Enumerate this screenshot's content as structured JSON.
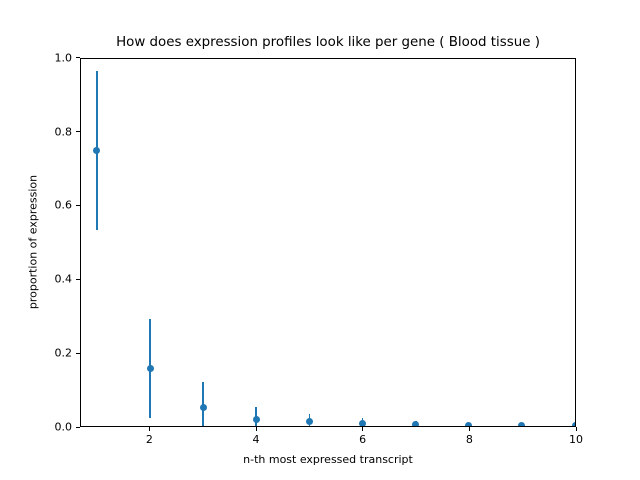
{
  "chart_data": {
    "type": "scatter",
    "title": "How does expression profiles look like per gene ( Blood tissue )",
    "xlabel": "n-th most expressed transcript",
    "ylabel": "proportion of expression",
    "x": [
      1,
      2,
      3,
      4,
      5,
      6,
      7,
      8,
      9,
      10
    ],
    "y": [
      0.75,
      0.157,
      0.052,
      0.018,
      0.012,
      0.007,
      0.005,
      0.003,
      0.002,
      0.002
    ],
    "yerr": [
      0.215,
      0.135,
      0.068,
      0.034,
      0.021,
      0.015,
      0.009,
      0.006,
      0.004,
      0.003
    ],
    "xlim": [
      0.7,
      10.0
    ],
    "ylim": [
      0.0,
      1.0
    ],
    "xticks": [
      {
        "value": 2,
        "label": "2"
      },
      {
        "value": 4,
        "label": "4"
      },
      {
        "value": 6,
        "label": "6"
      },
      {
        "value": 8,
        "label": "8"
      },
      {
        "value": 10,
        "label": "10"
      }
    ],
    "yticks": [
      {
        "value": 0.0,
        "label": "0.0"
      },
      {
        "value": 0.2,
        "label": "0.2"
      },
      {
        "value": 0.4,
        "label": "0.4"
      },
      {
        "value": 0.6,
        "label": "0.6"
      },
      {
        "value": 0.8,
        "label": "0.8"
      },
      {
        "value": 1.0,
        "label": "1.0"
      }
    ],
    "grid": false,
    "marker": "o",
    "errorbar_caps": false,
    "colors": {
      "series": "#1f77b4",
      "axis": "#000000",
      "background": "#ffffff"
    }
  }
}
